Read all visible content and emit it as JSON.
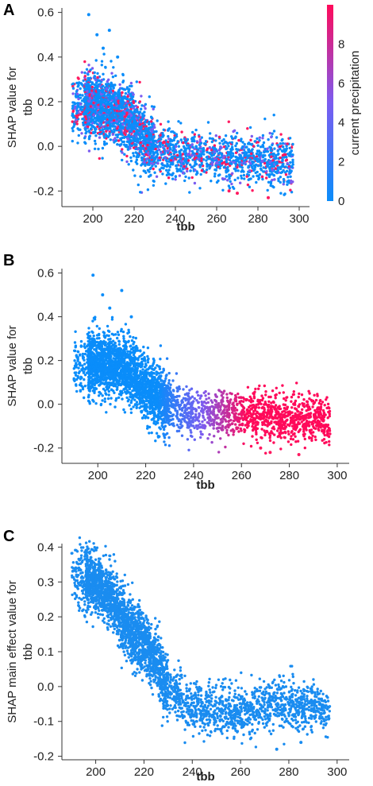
{
  "chart_data": [
    {
      "panel": "A",
      "type": "scatter",
      "xlabel": "tbb",
      "ylabel_lines": [
        "SHAP value for",
        "tbb"
      ],
      "xlim": [
        185,
        305
      ],
      "ylim": [
        -0.27,
        0.62
      ],
      "x_ticks": [
        200,
        220,
        240,
        260,
        280,
        300
      ],
      "y_ticks": [
        -0.2,
        0.0,
        0.2,
        0.4,
        0.6
      ],
      "color_mode": "mixed",
      "colorbar": {
        "label": "current precipitation",
        "min": 0,
        "max": 10,
        "ticks": [
          0,
          2,
          4,
          6,
          8
        ],
        "colors": [
          "#0a8dfa",
          "#7b5cf0",
          "#ff0a5a"
        ]
      },
      "trend": [
        [
          190,
          0.17
        ],
        [
          200,
          0.19
        ],
        [
          210,
          0.17
        ],
        [
          215,
          0.13
        ],
        [
          220,
          0.08
        ],
        [
          225,
          0.03
        ],
        [
          230,
          -0.01
        ],
        [
          240,
          -0.04
        ],
        [
          250,
          -0.05
        ],
        [
          260,
          -0.05
        ],
        [
          270,
          -0.05
        ],
        [
          280,
          -0.06
        ],
        [
          290,
          -0.07
        ],
        [
          296,
          -0.08
        ]
      ],
      "highlight_points": [
        [
          198,
          0.59
        ],
        [
          202,
          0.5
        ],
        [
          205,
          0.44
        ],
        [
          208,
          0.52
        ],
        [
          212,
          0.4
        ],
        [
          266,
          -0.2
        ],
        [
          270,
          -0.21
        ],
        [
          285,
          -0.23
        ]
      ]
    },
    {
      "panel": "B",
      "type": "scatter",
      "xlabel": "tbb",
      "ylabel_lines": [
        "SHAP value for",
        "tbb"
      ],
      "xlim": [
        185,
        305
      ],
      "ylim": [
        -0.27,
        0.62
      ],
      "x_ticks": [
        200,
        220,
        240,
        260,
        280,
        300
      ],
      "y_ticks": [
        -0.2,
        0.0,
        0.2,
        0.4,
        0.6
      ],
      "color_mode": "gradient_by_x",
      "gradient_colors": [
        "#0a8dfa",
        "#7b5cf0",
        "#ff0a5a"
      ],
      "gradient_range": [
        225,
        262
      ],
      "trend": [
        [
          190,
          0.17
        ],
        [
          200,
          0.19
        ],
        [
          210,
          0.17
        ],
        [
          215,
          0.13
        ],
        [
          220,
          0.08
        ],
        [
          225,
          0.03
        ],
        [
          230,
          -0.01
        ],
        [
          240,
          -0.04
        ],
        [
          250,
          -0.05
        ],
        [
          260,
          -0.05
        ],
        [
          270,
          -0.05
        ],
        [
          280,
          -0.06
        ],
        [
          290,
          -0.07
        ],
        [
          296,
          -0.08
        ]
      ],
      "highlight_points": [
        [
          198,
          0.59
        ],
        [
          202,
          0.5
        ],
        [
          205,
          0.44
        ],
        [
          210,
          0.52
        ],
        [
          214,
          0.4
        ],
        [
          268,
          -0.2
        ],
        [
          272,
          -0.22
        ],
        [
          284,
          -0.23
        ]
      ]
    },
    {
      "panel": "C",
      "type": "scatter",
      "xlabel": "tbb",
      "ylabel_lines": [
        "SHAP main effect value for",
        "tbb"
      ],
      "xlim": [
        186,
        305
      ],
      "ylim": [
        -0.21,
        0.41
      ],
      "x_ticks": [
        200,
        220,
        240,
        260,
        280,
        300
      ],
      "y_ticks": [
        -0.2,
        -0.1,
        0.0,
        0.1,
        0.2,
        0.3,
        0.4
      ],
      "color_mode": "single",
      "color": "#1a8cf0",
      "trend": [
        [
          192,
          0.31
        ],
        [
          200,
          0.3
        ],
        [
          205,
          0.26
        ],
        [
          210,
          0.21
        ],
        [
          215,
          0.16
        ],
        [
          220,
          0.12
        ],
        [
          225,
          0.08
        ],
        [
          228,
          0.02
        ],
        [
          232,
          -0.02
        ],
        [
          240,
          -0.05
        ],
        [
          250,
          -0.07
        ],
        [
          260,
          -0.07
        ],
        [
          270,
          -0.06
        ],
        [
          280,
          -0.05
        ],
        [
          290,
          -0.06
        ],
        [
          296,
          -0.07
        ]
      ],
      "highlight_points": [
        [
          196,
          0.39
        ],
        [
          198,
          0.37
        ],
        [
          193,
          0.34
        ],
        [
          285,
          -0.16
        ],
        [
          275,
          -0.18
        ]
      ]
    }
  ]
}
